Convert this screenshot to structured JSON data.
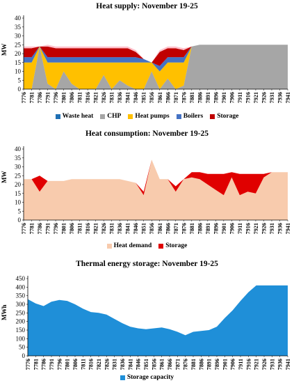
{
  "chart_data": [
    {
      "type": "area",
      "title": "Heat supply:  November 19-25",
      "ylabel": "MW",
      "ylim": [
        0,
        40
      ],
      "yticks": [
        0,
        5,
        10,
        15,
        20,
        25,
        30,
        35,
        40
      ],
      "x": [
        7776,
        7781,
        7786,
        7791,
        7796,
        7801,
        7806,
        7811,
        7816,
        7821,
        7826,
        7831,
        7836,
        7841,
        7846,
        7851,
        7856,
        7861,
        7866,
        7871,
        7876,
        7881,
        7886,
        7891,
        7896,
        7901,
        7906,
        7911,
        7916,
        7921,
        7926,
        7931,
        7936,
        7941
      ],
      "stacked": true,
      "series": [
        {
          "name": "Waste heat",
          "color": "#1F6FB4",
          "values": [
            0,
            0,
            0,
            0,
            0,
            0,
            0,
            0,
            0,
            0,
            0,
            0,
            0,
            0,
            0,
            0,
            0,
            0,
            0,
            0,
            0,
            0,
            0,
            0,
            0,
            0,
            0,
            0,
            0,
            0,
            0,
            0,
            0,
            0
          ]
        },
        {
          "name": "CHP",
          "color": "#A6A6A6",
          "values": [
            0,
            0,
            24,
            3,
            0,
            10,
            3,
            0,
            0,
            0,
            8,
            0,
            5,
            2,
            0,
            0,
            10,
            0,
            6,
            0,
            2,
            24,
            25,
            25,
            25,
            25,
            25,
            25,
            25,
            25,
            25,
            25,
            25,
            25
          ]
        },
        {
          "name": "Heat pumps",
          "color": "#FFC000",
          "values": [
            15,
            15,
            0,
            12,
            15,
            5,
            12,
            15,
            15,
            15,
            7,
            15,
            10,
            13,
            15,
            15,
            5,
            10,
            9,
            15,
            13,
            0,
            0,
            0,
            0,
            0,
            0,
            0,
            0,
            0,
            0,
            0,
            0,
            0
          ]
        },
        {
          "name": "Boilers",
          "color": "#4472C4",
          "values": [
            3,
            3,
            0,
            3,
            3,
            3,
            3,
            3,
            3,
            3,
            3,
            3,
            3,
            3,
            3,
            2,
            0,
            3,
            3,
            3,
            3,
            0,
            0,
            0,
            0,
            0,
            0,
            0,
            0,
            0,
            0,
            0,
            0,
            0
          ]
        },
        {
          "name": "Storage",
          "color": "#C00000",
          "values": [
            5,
            5,
            0,
            6,
            5,
            5,
            5,
            5,
            5,
            5,
            5,
            5,
            5,
            5,
            3,
            0,
            0,
            8,
            5,
            5,
            4,
            0,
            0,
            0,
            0,
            0,
            0,
            0,
            0,
            0,
            0,
            0,
            0,
            0
          ]
        },
        {
          "name": "",
          "color": "#FFC0CB",
          "values": [
            1,
            1,
            0,
            1,
            1,
            1,
            1,
            1,
            1,
            1,
            1,
            1,
            1,
            1,
            1,
            0,
            0,
            1,
            1,
            1,
            1,
            0,
            0,
            0,
            0,
            0,
            0,
            0,
            0,
            0,
            0,
            0,
            0,
            0
          ]
        }
      ],
      "legend": [
        "Waste heat",
        "CHP",
        "Heat pumps",
        "Boilers",
        "Storage"
      ]
    },
    {
      "type": "area",
      "title": "Heat consumption:  November 19-25",
      "ylabel": "MW",
      "ylim": [
        0,
        40
      ],
      "yticks": [
        0,
        5,
        10,
        15,
        20,
        25,
        30,
        35,
        40
      ],
      "x": [
        7776,
        7781,
        7786,
        7791,
        7796,
        7801,
        7806,
        7811,
        7816,
        7821,
        7826,
        7831,
        7836,
        7841,
        7846,
        7851,
        7856,
        7861,
        7866,
        7871,
        7876,
        7881,
        7886,
        7891,
        7896,
        7901,
        7906,
        7911,
        7916,
        7921,
        7926,
        7931,
        7936,
        7941
      ],
      "stacked": true,
      "series": [
        {
          "name": "Heat demand",
          "color": "#F8CBAD",
          "values": [
            23,
            23,
            16,
            22,
            22,
            22,
            23,
            23,
            23,
            23,
            23,
            23,
            23,
            22,
            21,
            14,
            34,
            23,
            23,
            16,
            23,
            24,
            23,
            20,
            17,
            14,
            24,
            14,
            16,
            15,
            24,
            27,
            27,
            27
          ]
        },
        {
          "name": "Storage",
          "color": "#E00000",
          "values": [
            0,
            0,
            9,
            0,
            0,
            0,
            0,
            0,
            0,
            0,
            0,
            0,
            0,
            0,
            0,
            2,
            0,
            0,
            0,
            3,
            0,
            3,
            4,
            6,
            9,
            12,
            3,
            12,
            10,
            11,
            2,
            0,
            0,
            0
          ]
        }
      ],
      "legend": [
        "Heat demand",
        "Storage"
      ]
    },
    {
      "type": "area",
      "title": "Thermal  energy storage: November 19-25",
      "ylabel": "MWh",
      "ylim": [
        0,
        450
      ],
      "yticks": [
        0,
        50,
        100,
        150,
        200,
        250,
        300,
        350,
        400,
        450
      ],
      "x": [
        7776,
        7781,
        7786,
        7791,
        7796,
        7801,
        7806,
        7811,
        7816,
        7821,
        7826,
        7831,
        7836,
        7841,
        7846,
        7851,
        7856,
        7861,
        7866,
        7871,
        7876,
        7881,
        7886,
        7891,
        7896,
        7901,
        7906,
        7911,
        7916,
        7921,
        7926,
        7931,
        7936,
        7941
      ],
      "series": [
        {
          "name": "Storage capacity",
          "color": "#1F8FD8",
          "values": [
            330,
            305,
            290,
            315,
            325,
            320,
            300,
            275,
            255,
            250,
            240,
            215,
            190,
            170,
            160,
            155,
            160,
            165,
            155,
            140,
            120,
            140,
            145,
            150,
            170,
            220,
            265,
            320,
            370,
            410,
            410,
            410,
            410,
            410
          ]
        }
      ],
      "legend": [
        "Storage capacity"
      ]
    }
  ]
}
